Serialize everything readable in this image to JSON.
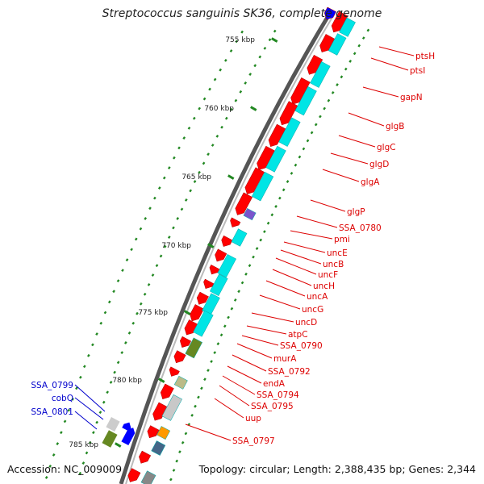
{
  "title": "Streptococcus sanguinis SK36, complete genome",
  "accession": "Accession: NC_009009",
  "topology": "Topology: circular; Length: 2,388,435 bp; Genes: 2,344",
  "colors": {
    "forward_gene": "#ff0000",
    "reverse_gene": "#0000ff",
    "cds_cyan": "#00e5e5",
    "label_red": "#dd0000",
    "label_blue": "#0000cc",
    "tick": "#228822",
    "backbone": "#888888"
  },
  "ticks": [
    "755 kbp",
    "760 kbp",
    "765 kbp",
    "770 kbp",
    "775 kbp",
    "780 kbp",
    "785 kbp"
  ],
  "genes_right": [
    "ptsH",
    "ptsI",
    "gapN",
    "glgB",
    "glgC",
    "glgD",
    "glgA",
    "glgP",
    "SSA_0780",
    "pmi",
    "uncE",
    "uncB",
    "uncF",
    "uncH",
    "uncA",
    "uncG",
    "uncD",
    "atpC",
    "SSA_0790",
    "murA",
    "SSA_0792",
    "endA",
    "SSA_0794",
    "SSA_0795",
    "uup",
    "SSA_0797"
  ],
  "genes_left": [
    "SSA_0799",
    "cobQ",
    "SSA_0801"
  ]
}
